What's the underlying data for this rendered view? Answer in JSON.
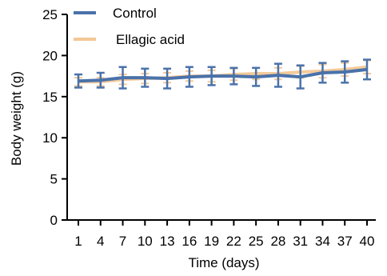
{
  "chart_data": {
    "type": "line",
    "xlabel": "Time (days)",
    "ylabel": "Body weight (g)",
    "x": [
      1,
      4,
      7,
      10,
      13,
      16,
      19,
      22,
      25,
      28,
      31,
      34,
      37,
      40
    ],
    "ylim": [
      0,
      25
    ],
    "yticks": [
      0,
      5,
      10,
      15,
      20,
      25
    ],
    "grid": false,
    "legend_position": "top-left",
    "series": [
      {
        "name": "Control",
        "color": "#4a72aa",
        "values": [
          16.9,
          17.0,
          17.3,
          17.3,
          17.2,
          17.4,
          17.5,
          17.5,
          17.4,
          17.6,
          17.4,
          17.9,
          18.0,
          18.3
        ],
        "error": [
          0.8,
          0.9,
          1.3,
          1.1,
          1.2,
          1.2,
          1.1,
          1.0,
          1.1,
          1.4,
          1.4,
          1.2,
          1.3,
          1.2
        ]
      },
      {
        "name": "Ellagic acid",
        "color": "#f3c795",
        "values": [
          16.8,
          16.8,
          17.1,
          17.2,
          17.3,
          17.5,
          17.5,
          17.7,
          17.8,
          17.8,
          18.0,
          18.1,
          18.3,
          18.6
        ],
        "error": [
          0.5,
          0.5,
          0.6,
          0.6,
          0.6,
          0.6,
          0.7,
          0.7,
          0.7,
          0.7,
          0.7,
          0.8,
          0.8,
          0.8
        ]
      }
    ]
  }
}
